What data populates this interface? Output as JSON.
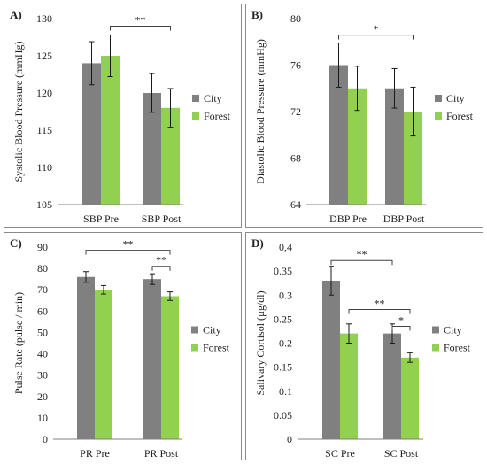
{
  "colors": {
    "city": "#808080",
    "forest": "#92d050",
    "axis": "#7f7f7f",
    "bracket": "#404040",
    "text": "#222222"
  },
  "chart_data": [
    {
      "type": "bar",
      "panel_label": "A)",
      "ylabel": "Systolic Blood Pressure (mmHg)",
      "categories": [
        "SBP Pre",
        "SBP Post"
      ],
      "ylim": [
        105,
        130
      ],
      "yticks": [
        "105",
        "110",
        "115",
        "120",
        "125",
        "130"
      ],
      "tick_values": [
        105,
        110,
        115,
        120,
        125,
        130
      ],
      "grid": false,
      "legend_position": "right",
      "series": [
        {
          "name": "City",
          "values": [
            124,
            120
          ],
          "errors": [
            2.9,
            2.6
          ]
        },
        {
          "name": "Forest",
          "values": [
            125,
            118
          ],
          "errors": [
            2.8,
            2.6
          ]
        }
      ],
      "annotations": [
        {
          "text": "**",
          "from": [
            0,
            1
          ],
          "to": [
            1,
            1
          ]
        }
      ]
    },
    {
      "type": "bar",
      "panel_label": "B)",
      "ylabel": "Diastolic Blood Pressure (mmHg)",
      "categories": [
        "DBP Pre",
        "DBP Post"
      ],
      "ylim": [
        64,
        80
      ],
      "yticks": [
        "64",
        "68",
        "72",
        "76",
        "80"
      ],
      "tick_values": [
        64,
        68,
        72,
        76,
        80
      ],
      "grid": false,
      "legend_position": "right",
      "series": [
        {
          "name": "City",
          "values": [
            76,
            74
          ],
          "errors": [
            1.9,
            1.7
          ]
        },
        {
          "name": "Forest",
          "values": [
            74,
            72
          ],
          "errors": [
            1.9,
            2.1
          ]
        }
      ],
      "annotations": [
        {
          "text": "*",
          "from": [
            0,
            0
          ],
          "to": [
            1,
            1
          ]
        }
      ]
    },
    {
      "type": "bar",
      "panel_label": "C)",
      "ylabel": "Pulse Rate (pulse / min)",
      "categories": [
        "PR Pre",
        "PR Post"
      ],
      "ylim": [
        0,
        90
      ],
      "yticks": [
        "0",
        "10",
        "20",
        "30",
        "40",
        "50",
        "60",
        "70",
        "80",
        "90"
      ],
      "tick_values": [
        0,
        10,
        20,
        30,
        40,
        50,
        60,
        70,
        80,
        90
      ],
      "grid": false,
      "legend_position": "right",
      "series": [
        {
          "name": "City",
          "values": [
            76,
            75
          ],
          "errors": [
            2.5,
            2.5
          ]
        },
        {
          "name": "Forest",
          "values": [
            70,
            67
          ],
          "errors": [
            2.0,
            2.0
          ]
        }
      ],
      "annotations": [
        {
          "text": "**",
          "from": [
            0,
            0
          ],
          "to": [
            1,
            1
          ]
        },
        {
          "text": "**",
          "from": [
            1,
            0
          ],
          "to": [
            1,
            1
          ]
        }
      ]
    },
    {
      "type": "bar",
      "panel_label": "D)",
      "ylabel": "Salivary Cortisol (µg/dl)",
      "categories": [
        "SC Pre",
        "SC Post"
      ],
      "ylim": [
        0,
        0.4
      ],
      "yticks": [
        "0",
        "0.05",
        "0.1",
        "0.15",
        "0.2",
        "0.25",
        "0.3",
        "0.35",
        "0,4"
      ],
      "tick_values": [
        0,
        0.05,
        0.1,
        0.15,
        0.2,
        0.25,
        0.3,
        0.35,
        0.4
      ],
      "grid": false,
      "legend_position": "right",
      "series": [
        {
          "name": "City",
          "values": [
            0.33,
            0.22
          ],
          "errors": [
            0.03,
            0.02
          ]
        },
        {
          "name": "Forest",
          "values": [
            0.22,
            0.17
          ],
          "errors": [
            0.02,
            0.01
          ]
        }
      ],
      "annotations": [
        {
          "text": "**",
          "from": [
            0,
            0
          ],
          "to": [
            1,
            0
          ]
        },
        {
          "text": "**",
          "from": [
            0,
            1
          ],
          "to": [
            1,
            1
          ]
        },
        {
          "text": "*",
          "from": [
            1,
            0
          ],
          "to": [
            1,
            1
          ]
        }
      ]
    }
  ]
}
